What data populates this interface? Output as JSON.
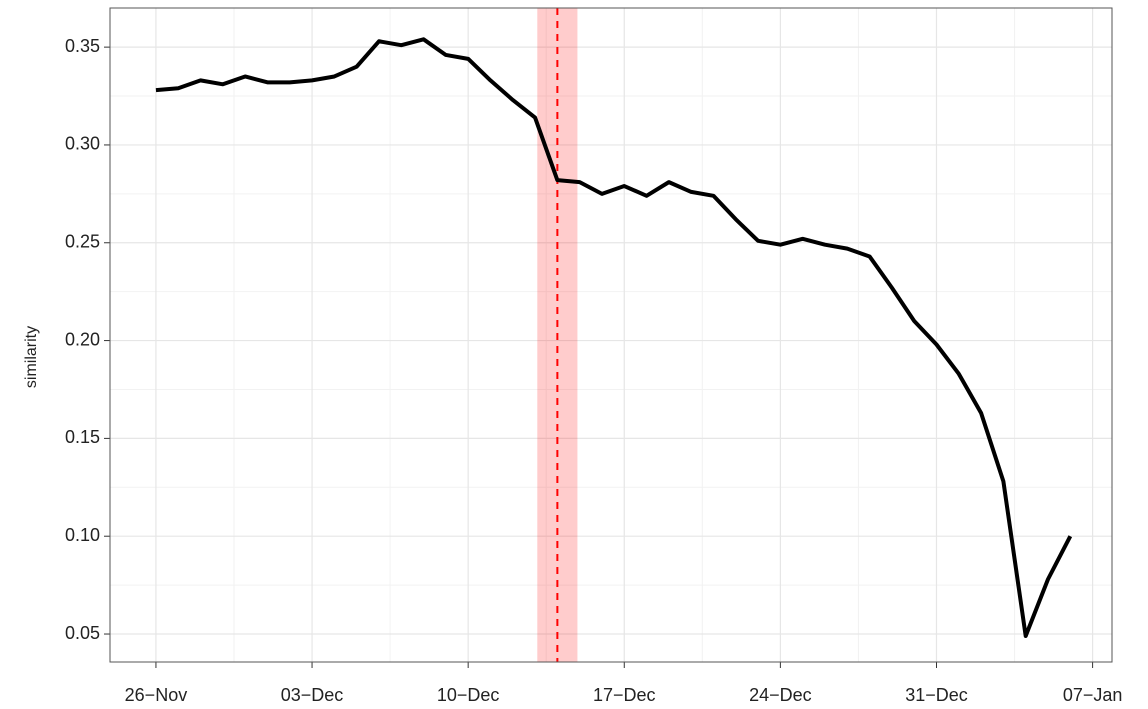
{
  "chart_data": {
    "type": "line",
    "y_label": "similarity",
    "x": [
      0,
      1,
      2,
      3,
      4,
      5,
      6,
      7,
      8,
      9,
      10,
      11,
      12,
      13,
      14,
      15,
      16,
      17,
      18,
      19,
      20,
      21,
      22,
      23,
      24,
      25,
      26,
      27,
      28,
      29,
      30,
      31,
      32,
      33,
      34,
      35,
      36,
      37,
      38,
      39,
      40,
      41
    ],
    "series": [
      {
        "color": "#000000",
        "values": [
          0.328,
          0.329,
          0.333,
          0.331,
          0.335,
          0.332,
          0.332,
          0.333,
          0.335,
          0.34,
          0.353,
          0.351,
          0.354,
          0.346,
          0.344,
          0.333,
          0.323,
          0.314,
          0.282,
          0.281,
          0.275,
          0.279,
          0.274,
          0.281,
          0.276,
          0.274,
          0.262,
          0.251,
          0.249,
          0.252,
          0.249,
          0.247,
          0.243,
          0.227,
          0.21,
          0.198,
          0.183,
          0.163,
          0.128,
          0.049,
          0.078,
          0.1
        ]
      }
    ],
    "xlim": [
      -2.06,
      42.87
    ],
    "xticks": [
      {
        "value": 0,
        "label": "26−Nov"
      },
      {
        "value": 7,
        "label": "03−Dec"
      },
      {
        "value": 14,
        "label": "10−Dec"
      },
      {
        "value": 21,
        "label": "17−Dec"
      },
      {
        "value": 28,
        "label": "24−Dec"
      },
      {
        "value": 35,
        "label": "31−Dec"
      },
      {
        "value": 42,
        "label": "07−Jan"
      }
    ],
    "ylim": [
      0.0357,
      0.37
    ],
    "yticks": [
      {
        "value": 0.05,
        "label": "0.05"
      },
      {
        "value": 0.1,
        "label": "0.10"
      },
      {
        "value": 0.15,
        "label": "0.15"
      },
      {
        "value": 0.2,
        "label": "0.20"
      },
      {
        "value": 0.25,
        "label": "0.25"
      },
      {
        "value": 0.3,
        "label": "0.30"
      },
      {
        "value": 0.35,
        "label": "0.35"
      }
    ],
    "grid": true,
    "highlight": {
      "x": 18,
      "band": [
        17.1,
        18.9
      ],
      "color": "#ff0000"
    }
  }
}
